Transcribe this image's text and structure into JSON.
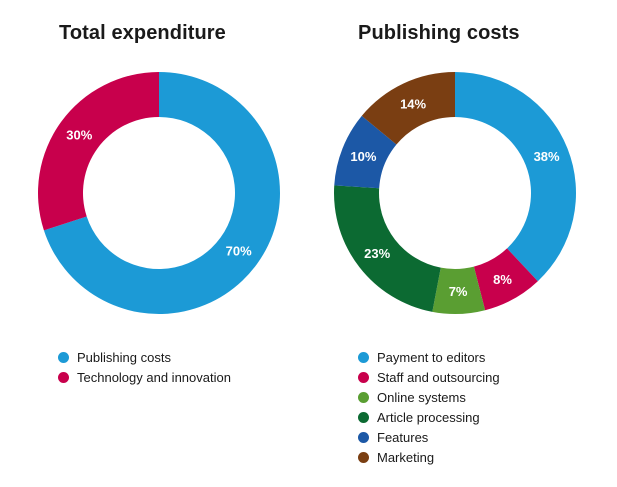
{
  "chart_data": [
    {
      "type": "pie",
      "title": "Total expenditure",
      "categories": [
        "Publishing costs",
        "Technology and innovation"
      ],
      "values": [
        70,
        30
      ],
      "labels": [
        "70%",
        "30%"
      ],
      "colors": [
        "#1c9ad6",
        "#c8004c"
      ]
    },
    {
      "type": "pie",
      "title": "Publishing costs",
      "categories": [
        "Payment to editors",
        "Staff and outsourcing",
        "Online systems",
        "Article processing",
        "Features",
        "Marketing"
      ],
      "values": [
        38,
        8,
        7,
        23,
        10,
        14
      ],
      "labels": [
        "38%",
        "8%",
        "7%",
        "23%",
        "10%",
        "14%"
      ],
      "colors": [
        "#1c9ad6",
        "#c8004c",
        "#5a9e32",
        "#0c6a32",
        "#1c58a6",
        "#7a3e12"
      ]
    }
  ]
}
